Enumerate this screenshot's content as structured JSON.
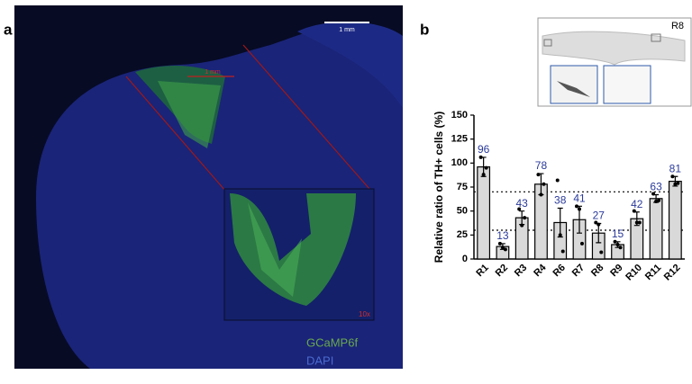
{
  "panel_labels": [
    "a",
    "b"
  ],
  "image": {
    "scale_bar": "1 mm",
    "inner_scale": "1 mm",
    "inset_zoom": "10x",
    "channels": [
      "GCaMP6f",
      "DAPI"
    ],
    "thumbnail_label": "R8"
  },
  "chart_data": {
    "type": "bar",
    "ylabel": "Relative ratio of TH+ cells (%)",
    "categories": [
      "R1",
      "R2",
      "R3",
      "R4",
      "R6",
      "R7",
      "R8",
      "R9",
      "R10",
      "R11",
      "R12"
    ],
    "values": [
      96,
      13,
      43,
      78,
      38,
      41,
      27,
      15,
      42,
      63,
      81
    ],
    "errors": [
      10,
      3,
      7,
      11,
      15,
      14,
      10,
      3,
      7,
      4,
      5
    ],
    "points": [
      [
        106,
        88,
        95
      ],
      [
        16,
        12,
        10
      ],
      [
        52,
        35,
        43
      ],
      [
        88,
        67,
        78
      ],
      [
        82,
        25,
        8
      ],
      [
        55,
        52,
        16
      ],
      [
        38,
        36,
        7
      ],
      [
        18,
        15,
        12
      ],
      [
        50,
        38,
        38
      ],
      [
        68,
        60,
        61
      ],
      [
        86,
        78,
        79
      ]
    ],
    "color": "#d9d9d9",
    "label_color": "#2a3a9a",
    "ref_lines": [
      70,
      30
    ],
    "ylim": [
      0,
      150
    ],
    "yticks": [
      0,
      25,
      50,
      75,
      100,
      125,
      150
    ]
  }
}
